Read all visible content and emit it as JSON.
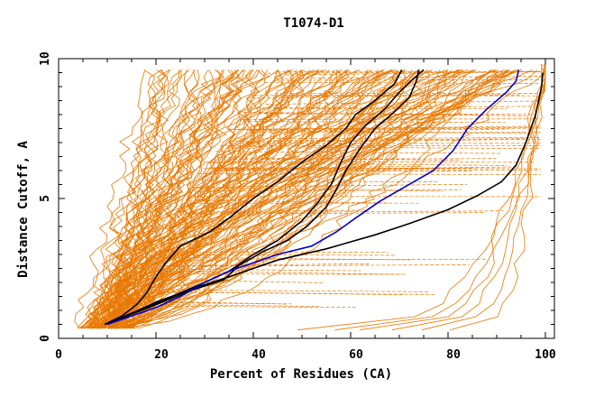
{
  "chart_data": {
    "type": "line",
    "title": "T1074-D1",
    "xlabel": "Percent of Residues (CA)",
    "ylabel": "Distance Cutoff, A",
    "xlim": [
      0,
      100
    ],
    "ylim": [
      0,
      10
    ],
    "x_ticks": [
      "0",
      "20",
      "40",
      "60",
      "80",
      "100"
    ],
    "y_ticks": [
      "0",
      "5",
      "10"
    ],
    "grid": false,
    "legend": "none",
    "colors": {
      "models": "#e87800",
      "highlight_black": "#000000",
      "highlight_blue": "#0000cc",
      "axes": "#000000"
    },
    "series": [
      {
        "color": "#000000",
        "points": [
          [
            9.5,
            0.5
          ],
          [
            14,
            0.8
          ],
          [
            20,
            1.3
          ],
          [
            28,
            1.8
          ],
          [
            35,
            2.2
          ],
          [
            45,
            2.8
          ],
          [
            55,
            3.2
          ],
          [
            65,
            3.7
          ],
          [
            72,
            4.1
          ],
          [
            80,
            4.6
          ],
          [
            86,
            5.1
          ],
          [
            91,
            5.6
          ],
          [
            94,
            6.2
          ],
          [
            96,
            7
          ],
          [
            98,
            8
          ],
          [
            99.2,
            9
          ],
          [
            99.5,
            9.5
          ]
        ]
      },
      {
        "color": "#000000",
        "points": [
          [
            9.5,
            0.5
          ],
          [
            13,
            0.8
          ],
          [
            16,
            1.2
          ],
          [
            18,
            1.6
          ],
          [
            20,
            2.2
          ],
          [
            22,
            2.7
          ],
          [
            25,
            3.3
          ],
          [
            31,
            3.8
          ],
          [
            35,
            4.3
          ],
          [
            40,
            5
          ],
          [
            45,
            5.6
          ],
          [
            50,
            6.3
          ],
          [
            55,
            6.9
          ],
          [
            59,
            7.5
          ],
          [
            61,
            8
          ],
          [
            65,
            8.5
          ],
          [
            69,
            9.1
          ],
          [
            70.5,
            9.6
          ]
        ]
      },
      {
        "color": "#000000",
        "points": [
          [
            9.5,
            0.5
          ],
          [
            15,
            0.9
          ],
          [
            22,
            1.4
          ],
          [
            30,
            2
          ],
          [
            35,
            2.4
          ],
          [
            40,
            3
          ],
          [
            45,
            3.5
          ],
          [
            50,
            4.2
          ],
          [
            53,
            4.8
          ],
          [
            56,
            5.5
          ],
          [
            58,
            6.3
          ],
          [
            60,
            7
          ],
          [
            63,
            7.6
          ],
          [
            67,
            8.2
          ],
          [
            70,
            8.8
          ],
          [
            73,
            9.3
          ],
          [
            75,
            9.6
          ]
        ]
      },
      {
        "color": "#000000",
        "points": [
          [
            9.5,
            0.5
          ],
          [
            14,
            0.8
          ],
          [
            20,
            1.2
          ],
          [
            27,
            1.7
          ],
          [
            34,
            2.1
          ],
          [
            37,
            2.6
          ],
          [
            42,
            3.1
          ],
          [
            47,
            3.5
          ],
          [
            51,
            4
          ],
          [
            55,
            4.7
          ],
          [
            57,
            5.3
          ],
          [
            59,
            6
          ],
          [
            62,
            6.8
          ],
          [
            65,
            7.5
          ],
          [
            69,
            8.1
          ],
          [
            72,
            8.6
          ],
          [
            73.5,
            9.2
          ],
          [
            74,
            9.6
          ]
        ]
      },
      {
        "color": "#0000cc",
        "points": [
          [
            10,
            0.5
          ],
          [
            15,
            0.8
          ],
          [
            20,
            1.1
          ],
          [
            25,
            1.5
          ],
          [
            30,
            2
          ],
          [
            35,
            2.4
          ],
          [
            40,
            2.7
          ],
          [
            45,
            3
          ],
          [
            52,
            3.3
          ],
          [
            57,
            3.8
          ],
          [
            61,
            4.3
          ],
          [
            66,
            4.9
          ],
          [
            71,
            5.4
          ],
          [
            77,
            6
          ],
          [
            81,
            6.7
          ],
          [
            84,
            7.5
          ],
          [
            88,
            8.2
          ],
          [
            92,
            8.8
          ],
          [
            94,
            9.2
          ],
          [
            94.5,
            9.6
          ]
        ]
      }
    ]
  }
}
